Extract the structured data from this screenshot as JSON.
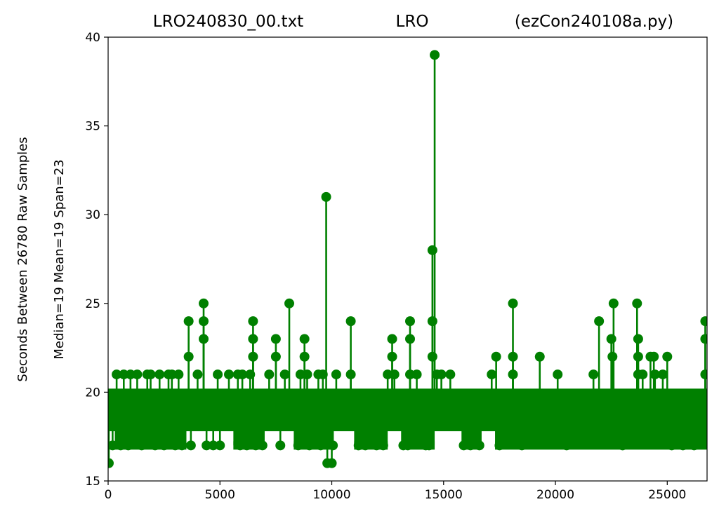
{
  "chart_data": {
    "type": "scatter",
    "style": "stem",
    "title_parts": [
      "LRO240830_00.txt",
      "LRO",
      "(ezCon240108a.py)"
    ],
    "ylabel_lines": [
      "Seconds Between 26780 Raw Samples",
      "Median=19  Mean=19  Span=23"
    ],
    "xlabel": "",
    "xlim": [
      0,
      26780
    ],
    "ylim": [
      15,
      40
    ],
    "xticks": [
      0,
      5000,
      10000,
      15000,
      20000,
      25000
    ],
    "yticks": [
      15,
      20,
      25,
      30,
      35,
      40
    ],
    "grid": false,
    "color": "#008000",
    "baseline_band": {
      "low": 18,
      "high": 20,
      "x_range": [
        0,
        26780
      ],
      "description": "dense band of samples at 18–20 s"
    },
    "low_band_regions": [
      [
        300,
        3500
      ],
      [
        5600,
        7000
      ],
      [
        8300,
        10000
      ],
      [
        11000,
        12500
      ],
      [
        13100,
        14600
      ],
      [
        15800,
        16700
      ],
      [
        17300,
        26780
      ]
    ],
    "points": [
      {
        "x": 30,
        "y": 16
      },
      {
        "x": 200,
        "y": 17
      },
      {
        "x": 380,
        "y": 21
      },
      {
        "x": 560,
        "y": 17
      },
      {
        "x": 700,
        "y": 21
      },
      {
        "x": 900,
        "y": 17
      },
      {
        "x": 1000,
        "y": 21
      },
      {
        "x": 1300,
        "y": 21
      },
      {
        "x": 1500,
        "y": 17
      },
      {
        "x": 1750,
        "y": 21
      },
      {
        "x": 1900,
        "y": 21
      },
      {
        "x": 2100,
        "y": 17
      },
      {
        "x": 2300,
        "y": 21
      },
      {
        "x": 2500,
        "y": 17
      },
      {
        "x": 2700,
        "y": 21
      },
      {
        "x": 2850,
        "y": 21
      },
      {
        "x": 3000,
        "y": 17
      },
      {
        "x": 3150,
        "y": 21
      },
      {
        "x": 3300,
        "y": 17
      },
      {
        "x": 3600,
        "y": 24
      },
      {
        "x": 3600,
        "y": 22
      },
      {
        "x": 3700,
        "y": 17
      },
      {
        "x": 4000,
        "y": 21
      },
      {
        "x": 4270,
        "y": 25
      },
      {
        "x": 4270,
        "y": 24
      },
      {
        "x": 4270,
        "y": 23
      },
      {
        "x": 4400,
        "y": 17
      },
      {
        "x": 4700,
        "y": 17
      },
      {
        "x": 4900,
        "y": 21
      },
      {
        "x": 5000,
        "y": 17
      },
      {
        "x": 5400,
        "y": 21
      },
      {
        "x": 5800,
        "y": 21
      },
      {
        "x": 5900,
        "y": 17
      },
      {
        "x": 6000,
        "y": 21
      },
      {
        "x": 6200,
        "y": 17
      },
      {
        "x": 6350,
        "y": 21
      },
      {
        "x": 6480,
        "y": 24
      },
      {
        "x": 6480,
        "y": 23
      },
      {
        "x": 6480,
        "y": 22
      },
      {
        "x": 6600,
        "y": 17
      },
      {
        "x": 6900,
        "y": 17
      },
      {
        "x": 7200,
        "y": 21
      },
      {
        "x": 7500,
        "y": 23
      },
      {
        "x": 7500,
        "y": 22
      },
      {
        "x": 7700,
        "y": 17
      },
      {
        "x": 7900,
        "y": 21
      },
      {
        "x": 8100,
        "y": 25
      },
      {
        "x": 8500,
        "y": 17
      },
      {
        "x": 8600,
        "y": 21
      },
      {
        "x": 8780,
        "y": 23
      },
      {
        "x": 8780,
        "y": 22
      },
      {
        "x": 8900,
        "y": 21
      },
      {
        "x": 9000,
        "y": 17
      },
      {
        "x": 9400,
        "y": 21
      },
      {
        "x": 9500,
        "y": 17
      },
      {
        "x": 9600,
        "y": 21
      },
      {
        "x": 9750,
        "y": 31
      },
      {
        "x": 9800,
        "y": 16
      },
      {
        "x": 10000,
        "y": 16
      },
      {
        "x": 10050,
        "y": 17
      },
      {
        "x": 10200,
        "y": 21
      },
      {
        "x": 10850,
        "y": 24
      },
      {
        "x": 10850,
        "y": 21
      },
      {
        "x": 11200,
        "y": 17
      },
      {
        "x": 11500,
        "y": 17
      },
      {
        "x": 12000,
        "y": 17
      },
      {
        "x": 12300,
        "y": 17
      },
      {
        "x": 12500,
        "y": 21
      },
      {
        "x": 12700,
        "y": 23
      },
      {
        "x": 12700,
        "y": 22
      },
      {
        "x": 12800,
        "y": 21
      },
      {
        "x": 13200,
        "y": 17
      },
      {
        "x": 13400,
        "y": 17
      },
      {
        "x": 13500,
        "y": 24
      },
      {
        "x": 13500,
        "y": 23
      },
      {
        "x": 13500,
        "y": 21
      },
      {
        "x": 13800,
        "y": 21
      },
      {
        "x": 14200,
        "y": 17
      },
      {
        "x": 14350,
        "y": 17
      },
      {
        "x": 14500,
        "y": 28
      },
      {
        "x": 14500,
        "y": 24
      },
      {
        "x": 14500,
        "y": 22
      },
      {
        "x": 14600,
        "y": 39
      },
      {
        "x": 14700,
        "y": 21
      },
      {
        "x": 14900,
        "y": 21
      },
      {
        "x": 15300,
        "y": 21
      },
      {
        "x": 15900,
        "y": 17
      },
      {
        "x": 16200,
        "y": 17
      },
      {
        "x": 16600,
        "y": 17
      },
      {
        "x": 17150,
        "y": 21
      },
      {
        "x": 17350,
        "y": 22
      },
      {
        "x": 17500,
        "y": 17
      },
      {
        "x": 18100,
        "y": 25
      },
      {
        "x": 18100,
        "y": 22
      },
      {
        "x": 18100,
        "y": 21
      },
      {
        "x": 18500,
        "y": 17
      },
      {
        "x": 19300,
        "y": 22
      },
      {
        "x": 20100,
        "y": 21
      },
      {
        "x": 20500,
        "y": 17
      },
      {
        "x": 21700,
        "y": 21
      },
      {
        "x": 21950,
        "y": 24
      },
      {
        "x": 22500,
        "y": 23
      },
      {
        "x": 22550,
        "y": 22
      },
      {
        "x": 22600,
        "y": 25
      },
      {
        "x": 23000,
        "y": 17
      },
      {
        "x": 23650,
        "y": 25
      },
      {
        "x": 23700,
        "y": 23
      },
      {
        "x": 23700,
        "y": 22
      },
      {
        "x": 23700,
        "y": 21
      },
      {
        "x": 23900,
        "y": 21
      },
      {
        "x": 24250,
        "y": 22
      },
      {
        "x": 24400,
        "y": 22
      },
      {
        "x": 24450,
        "y": 21
      },
      {
        "x": 24800,
        "y": 21
      },
      {
        "x": 25000,
        "y": 22
      },
      {
        "x": 25200,
        "y": 17
      },
      {
        "x": 25700,
        "y": 17
      },
      {
        "x": 26200,
        "y": 17
      },
      {
        "x": 26700,
        "y": 24
      },
      {
        "x": 26700,
        "y": 23
      },
      {
        "x": 26700,
        "y": 21
      }
    ]
  }
}
